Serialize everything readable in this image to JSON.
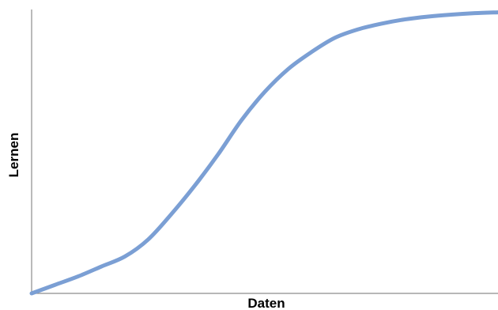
{
  "chart_data": {
    "type": "line",
    "title": "",
    "xlabel": "Daten",
    "ylabel": "Lernen",
    "xlim": [
      0,
      100
    ],
    "ylim": [
      0,
      100
    ],
    "x_ticks": false,
    "y_ticks": false,
    "grid": false,
    "legend": "none",
    "series": [
      {
        "color": "#7b9fd4",
        "x": [
          0,
          5,
          10,
          15,
          20,
          25,
          30,
          35,
          40,
          45,
          50,
          55,
          60,
          65,
          70,
          75,
          80,
          85,
          90,
          95,
          100
        ],
        "y": [
          0,
          3,
          6,
          9.5,
          13,
          19,
          28,
          38,
          49,
          61,
          71,
          79,
          85,
          90,
          93,
          95,
          96.5,
          97.5,
          98.2,
          98.7,
          99
        ]
      }
    ]
  }
}
